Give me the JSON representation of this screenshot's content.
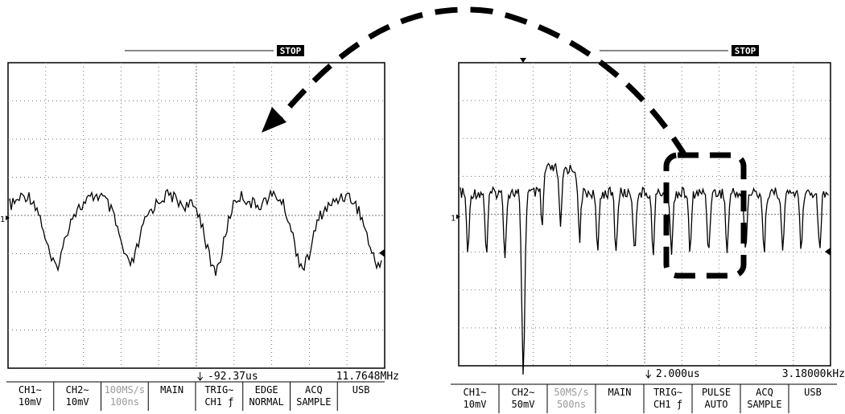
{
  "left_screen": {
    "status": "STOP",
    "channel_marker": "1",
    "trigger_time": "-92.37us",
    "frequency": "11.7648MHz",
    "menu": [
      [
        "CH1∼",
        "10mV"
      ],
      [
        "CH2∼",
        "10mV"
      ],
      [
        "100MS/s",
        "100ns"
      ],
      [
        "MAIN"
      ],
      [
        "TRIG∼",
        "CH1 ƒ"
      ],
      [
        "EDGE",
        "NORMAL"
      ],
      [
        "ACQ",
        "SAMPLE"
      ],
      [
        "USB"
      ]
    ]
  },
  "right_screen": {
    "status": "STOP",
    "channel_marker": "1",
    "trigger_time": "2.000us",
    "frequency": "3.18000kHz",
    "menu": [
      [
        "CH1∼",
        "10mV"
      ],
      [
        "CH2∼",
        "50mV"
      ],
      [
        "50MS/s",
        "500ns"
      ],
      [
        "MAIN"
      ],
      [
        "TRIG∼",
        "CH1 ƒ"
      ],
      [
        "PULSE",
        "AUTO"
      ],
      [
        "ACQ",
        "SAMPLE"
      ],
      [
        "USB"
      ]
    ]
  }
}
